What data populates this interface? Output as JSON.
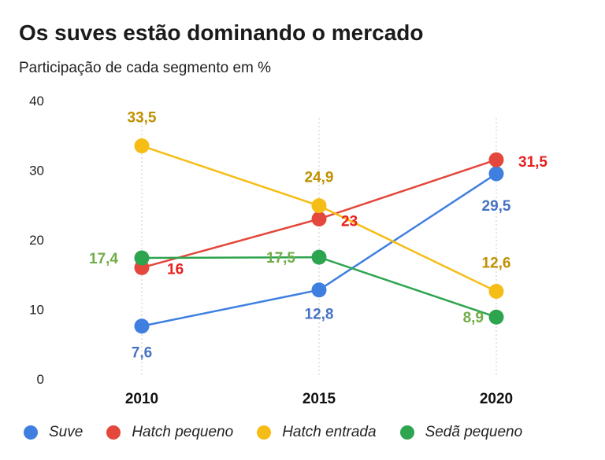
{
  "title": "Os suves estão dominando o mercado",
  "subtitle": "Participação de cada segmento em %",
  "chart_data": {
    "type": "line",
    "categories": [
      "2010",
      "2015",
      "2020"
    ],
    "ylim": [
      0,
      40
    ],
    "yticks": [
      "0",
      "10",
      "20",
      "30",
      "40"
    ],
    "grid": false,
    "legend_position": "bottom",
    "series": [
      {
        "name": "Suve",
        "color": "#3f7fe0",
        "label_color": "#4472c4",
        "values": [
          7.6,
          12.8,
          29.5
        ],
        "labels": [
          "7,6",
          "12,8",
          "29,5"
        ]
      },
      {
        "name": "Hatch pequeno",
        "color": "#e4473b",
        "label_color": "#e8201f",
        "values": [
          16,
          23,
          31.5
        ],
        "labels": [
          "16",
          "23",
          "31,5"
        ]
      },
      {
        "name": "Hatch entrada",
        "color": "#f6bd16",
        "label_color": "#bf9000",
        "values": [
          33.5,
          24.9,
          12.6
        ],
        "labels": [
          "33,5",
          "24,9",
          "12,6"
        ]
      },
      {
        "name": "Sedã pequeno",
        "color": "#2da44e",
        "label_color": "#70ad47",
        "values": [
          17.4,
          17.5,
          8.9
        ],
        "labels": [
          "17,4",
          "17,5",
          "8,9"
        ]
      }
    ]
  }
}
